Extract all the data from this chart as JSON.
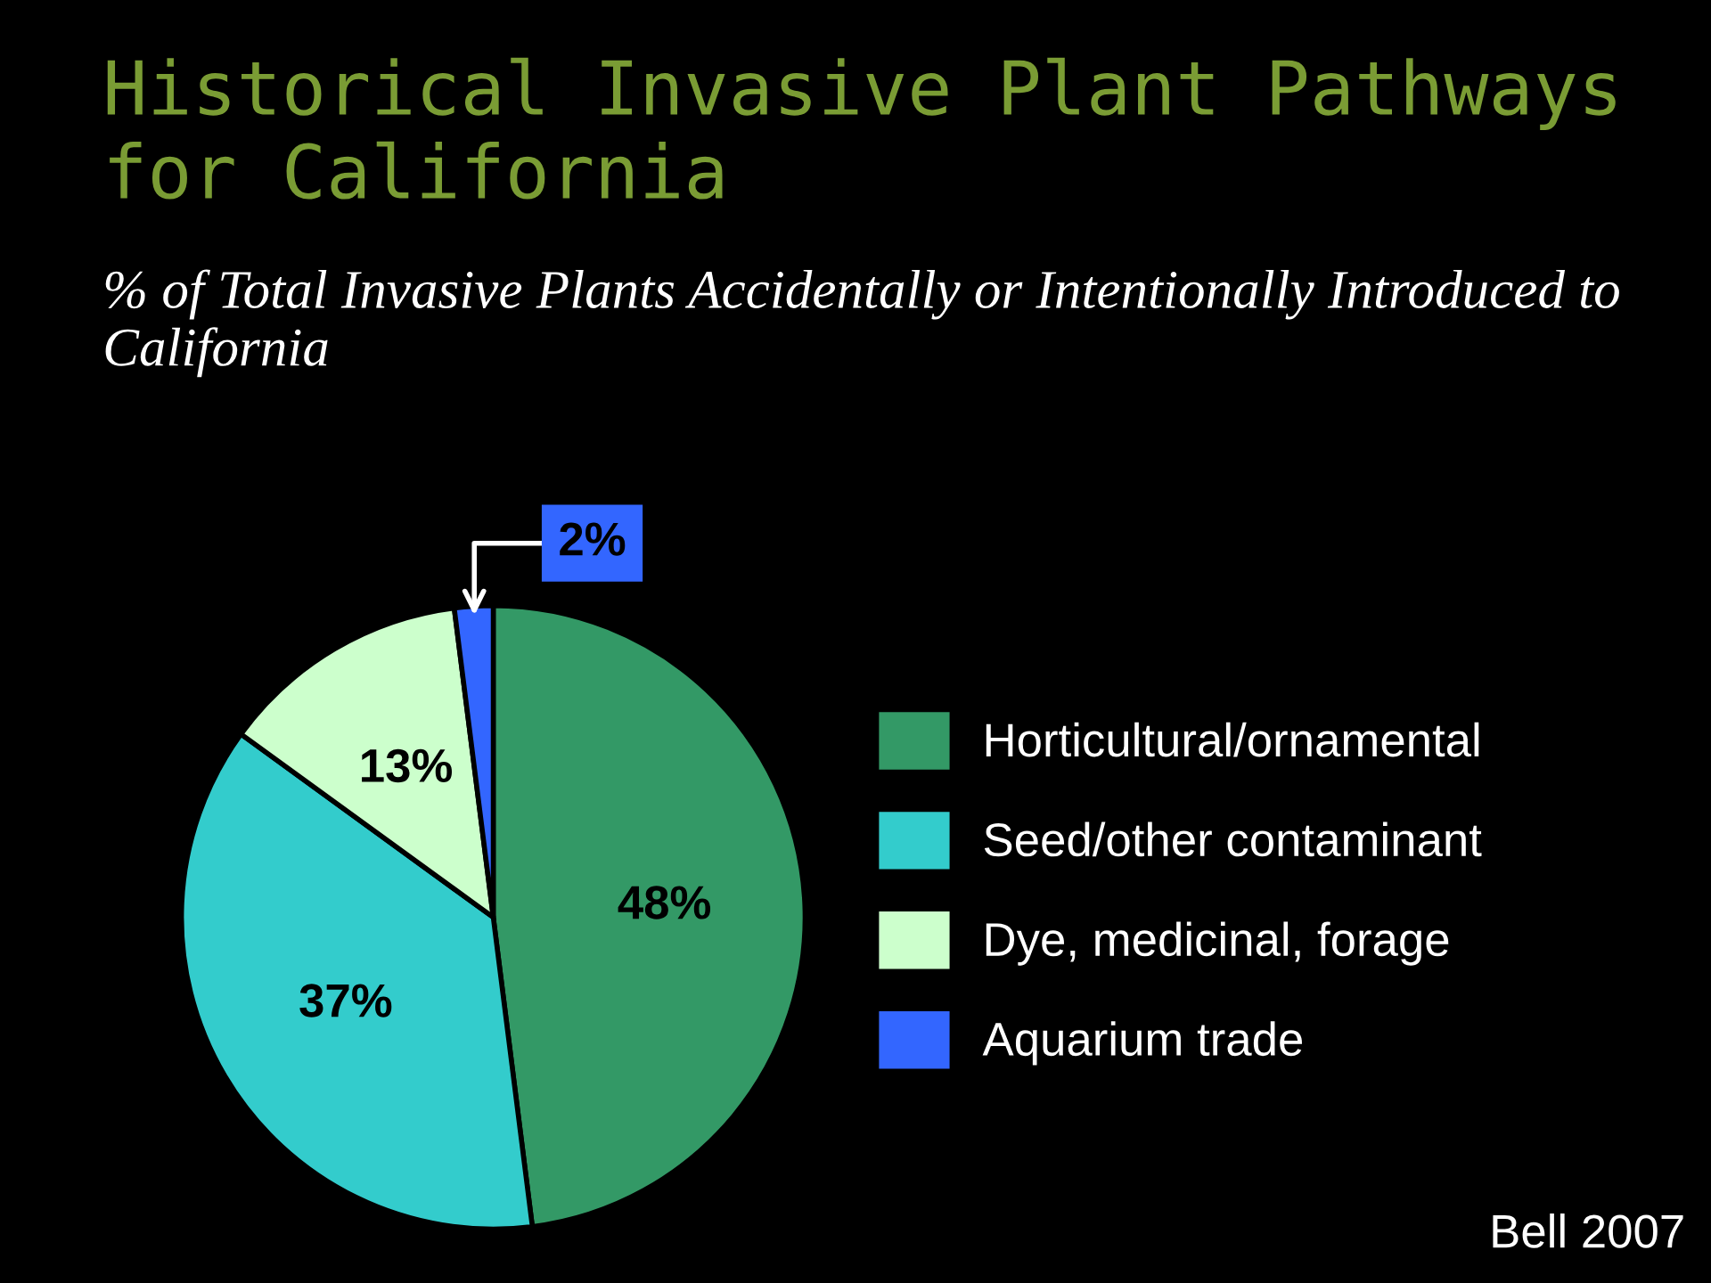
{
  "chart_data": {
    "type": "pie",
    "title": "Historical Invasive Plant Pathways for California",
    "subtitle": "% of Total Invasive Plants Accidentally or Intentionally Introduced to California",
    "categories": [
      "Horticultural/ornamental",
      "Seed/other contaminant",
      "Dye, medicinal, forage",
      "Aquarium trade"
    ],
    "values": [
      48,
      37,
      13,
      2
    ],
    "colors": [
      "#339966",
      "#33cccc",
      "#ccffcc",
      "#3366ff"
    ],
    "value_labels": [
      "48%",
      "37%",
      "13%",
      "2%"
    ],
    "legend": "right",
    "annotations": [
      "Bell 2007"
    ]
  }
}
